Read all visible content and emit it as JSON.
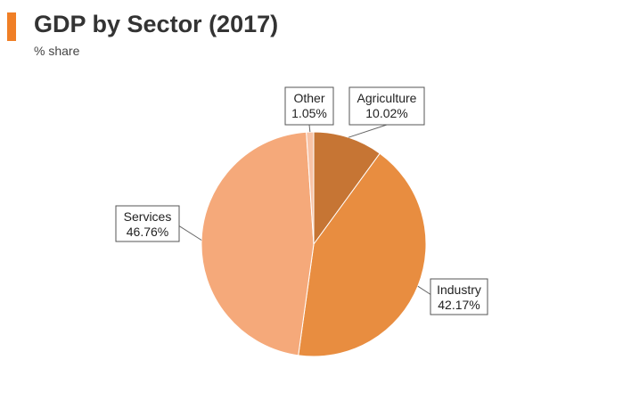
{
  "header": {
    "title": "GDP by Sector (2017)",
    "subtitle": "% share",
    "accent_color": "#f07f26"
  },
  "chart_data": {
    "type": "pie",
    "title": "GDP by Sector (2017)",
    "subtitle": "% share",
    "start_angle_deg": 0,
    "direction": "clockwise",
    "slices": [
      {
        "label": "Agriculture",
        "value": 10.02,
        "display": "10.02%",
        "color": "#c67534"
      },
      {
        "label": "Industry",
        "value": 42.17,
        "display": "42.17%",
        "color": "#e88d40"
      },
      {
        "label": "Services",
        "value": 46.76,
        "display": "46.76%",
        "color": "#f5a97a"
      },
      {
        "label": "Other",
        "value": 1.05,
        "display": "1.05%",
        "color": "#f8c3a6"
      }
    ]
  }
}
